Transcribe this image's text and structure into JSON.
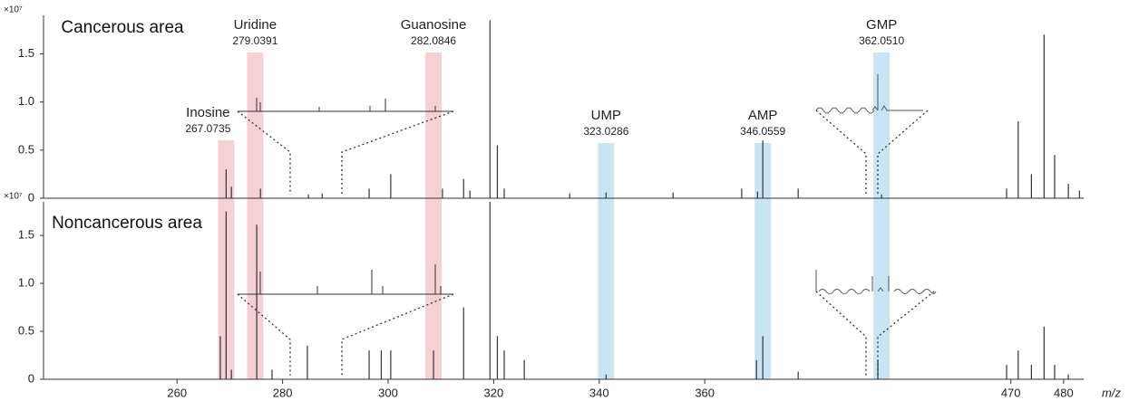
{
  "chart_data": [
    {
      "type": "spectrum",
      "title": "Cancerous area",
      "y_unit": "×10⁷",
      "xlim": [
        234.7,
        483.8
      ],
      "xbreak": [
        418,
        470
      ],
      "ylim": [
        0,
        1.9
      ],
      "yticks": [
        0,
        0.5,
        {
          "value": 1,
          "label": "1.0"
        },
        1.5
      ],
      "color": "#333333",
      "x": [
        269.3,
        270.3,
        275.8,
        284.9,
        287.5,
        296.4,
        300.5,
        310.3,
        314.3,
        315.5,
        319.3,
        320.7,
        322.0,
        334.4,
        341.3,
        354.0,
        367.0,
        370.0,
        371.0,
        377.7,
        393.5,
        417.2,
        471.4,
        473.9,
        476.3,
        478.3,
        480.9,
        483.0
      ],
      "values": [
        0.3,
        0.12,
        0.1,
        0.04,
        0.05,
        0.1,
        0.25,
        0.1,
        0.2,
        0.08,
        1.85,
        0.55,
        0.1,
        0.05,
        0.06,
        0.06,
        0.1,
        0.07,
        0.6,
        0.1,
        0.04,
        0.1,
        0.8,
        0.25,
        1.7,
        0.45,
        0.15,
        0.08
      ],
      "annotations": [
        {
          "name": "Inosine",
          "mass": "267.0735",
          "x": 269.3,
          "color": "#f3c9cb"
        },
        {
          "name": "Uridine",
          "mass": "279.0391",
          "x": 274.8,
          "color": "#f3c9cb"
        },
        {
          "name": "Guanosine",
          "mass": "282.0846",
          "x": 308.6,
          "color": "#f3c9cb"
        },
        {
          "name": "UMP",
          "mass": "323.0286",
          "x": 341.3,
          "color": "#bfe0f2"
        },
        {
          "name": "AMP",
          "mass": "346.0559",
          "x": 371.0,
          "color": "#bfe0f2"
        },
        {
          "name": "GMP",
          "mass": "362.0510",
          "x": 393.5,
          "color": "#bfe0f2"
        }
      ]
    },
    {
      "type": "spectrum",
      "title": "Noncancerous area",
      "y_unit": "×10⁷",
      "xlabel": "m/z",
      "xlim": [
        234.7,
        483.8
      ],
      "xbreak": [
        418,
        470
      ],
      "xticks": [
        260,
        280,
        300,
        320,
        340,
        360,
        470,
        480
      ],
      "ylim": [
        0,
        1.85
      ],
      "yticks": [
        0,
        0.5,
        {
          "value": 1,
          "label": "1.0"
        },
        1.5
      ],
      "color": "#333333",
      "x": [
        268.2,
        269.3,
        270.3,
        275.1,
        278.0,
        284.7,
        296.4,
        298.7,
        300.5,
        308.6,
        314.3,
        319.3,
        320.7,
        322.0,
        325.8,
        341.3,
        369.8,
        371.0,
        377.7,
        392.8,
        417.2,
        471.4,
        473.9,
        476.3,
        478.3,
        480.9
      ],
      "values": [
        0.45,
        1.75,
        0.1,
        1.6,
        0.1,
        0.35,
        0.3,
        0.3,
        0.3,
        0.3,
        0.75,
        1.85,
        0.45,
        0.3,
        0.2,
        0.05,
        0.2,
        0.45,
        0.08,
        0.2,
        0.15,
        0.3,
        0.15,
        0.55,
        0.15,
        0.05
      ]
    }
  ]
}
